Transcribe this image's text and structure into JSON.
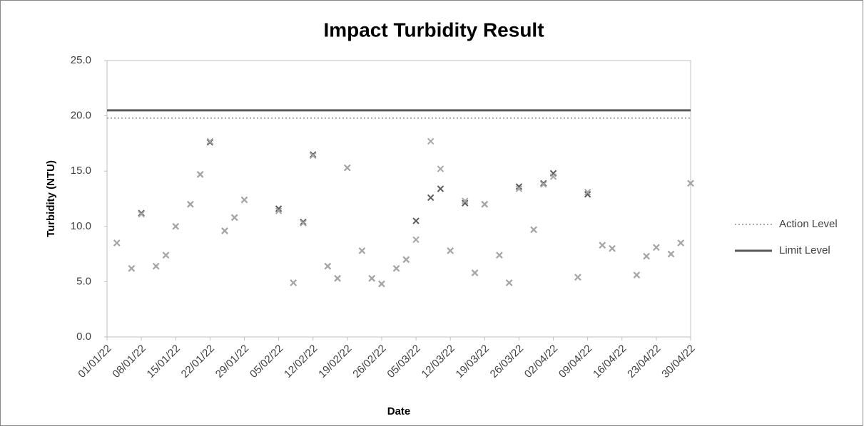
{
  "chart_data": {
    "type": "scatter",
    "title": "Impact Turbidity Result",
    "x_label": "Date",
    "y_label": "Turbidity (NTU)",
    "x": [
      "03/01/22",
      "06/01/22",
      "08/01/22",
      "11/01/22",
      "13/01/22",
      "15/01/22",
      "18/01/22",
      "20/01/22",
      "22/01/22",
      "25/01/22",
      "27/01/22",
      "29/01/22",
      "05/02/22",
      "08/02/22",
      "10/02/22",
      "12/02/22",
      "15/02/22",
      "17/02/22",
      "19/02/22",
      "22/02/22",
      "24/02/22",
      "26/02/22",
      "01/03/22",
      "03/03/22",
      "05/03/22",
      "08/03/22",
      "10/03/22",
      "12/03/22",
      "15/03/22",
      "17/03/22",
      "19/03/22",
      "22/03/22",
      "24/03/22",
      "26/03/22",
      "29/03/22",
      "31/03/22",
      "02/04/22",
      "07/04/22",
      "09/04/22",
      "12/04/22",
      "14/04/22",
      "19/04/22",
      "21/04/22",
      "23/04/22",
      "26/04/22",
      "28/04/22",
      "30/04/22"
    ],
    "markers": [
      {
        "color": "#595959",
        "values": [
          8.5,
          6.2,
          11.2,
          6.4,
          7.4,
          10.0,
          12.0,
          14.7,
          17.6,
          9.6,
          10.8,
          12.4,
          11.6,
          4.9,
          10.4,
          16.5,
          6.4,
          5.3,
          15.3,
          7.8,
          5.3,
          4.8,
          6.2,
          7.0,
          10.5,
          12.6,
          13.4,
          7.8,
          12.1,
          5.8,
          12.0,
          7.4,
          4.9,
          13.6,
          9.7,
          13.9,
          14.8,
          5.4,
          12.9,
          8.3,
          8.0,
          5.6,
          7.3,
          8.1,
          7.5,
          8.5,
          13.9
        ]
      },
      {
        "color": "#a6a6a6",
        "values": [
          8.5,
          6.2,
          11.1,
          6.4,
          7.4,
          10.0,
          12.0,
          14.7,
          17.7,
          9.6,
          10.8,
          12.4,
          11.4,
          4.9,
          10.3,
          16.4,
          6.4,
          5.3,
          15.3,
          7.8,
          5.3,
          4.8,
          6.2,
          7.0,
          8.8,
          17.7,
          15.2,
          7.8,
          12.3,
          5.8,
          12.0,
          7.4,
          4.9,
          13.4,
          9.7,
          13.8,
          14.5,
          5.4,
          13.1,
          8.3,
          8.0,
          5.6,
          7.3,
          8.1,
          7.5,
          8.5,
          13.9
        ]
      }
    ],
    "reference_lines": [
      {
        "name": "Action Level",
        "color": "#a6a6a6",
        "dashed": true,
        "value": 19.8
      },
      {
        "name": "Limit Level",
        "color": "#595959",
        "dashed": false,
        "value": 20.5
      }
    ],
    "xlim": [
      "01/01/22",
      "30/04/22"
    ],
    "xticks": [
      "01/01/22",
      "08/01/22",
      "15/01/22",
      "22/01/22",
      "29/01/22",
      "05/02/22",
      "12/02/22",
      "19/02/22",
      "26/02/22",
      "05/03/22",
      "12/03/22",
      "19/03/22",
      "26/03/22",
      "02/04/22",
      "09/04/22",
      "16/04/22",
      "23/04/22",
      "30/04/22"
    ],
    "ylim": [
      0,
      25
    ],
    "yticks": [
      {
        "value": 0,
        "label": "0.0"
      },
      {
        "value": 5,
        "label": "5.0"
      },
      {
        "value": 10,
        "label": "10.0"
      },
      {
        "value": 15,
        "label": "15.0"
      },
      {
        "value": 20,
        "label": "20.0"
      },
      {
        "value": 25,
        "label": "25.0"
      }
    ],
    "legend": "right"
  }
}
